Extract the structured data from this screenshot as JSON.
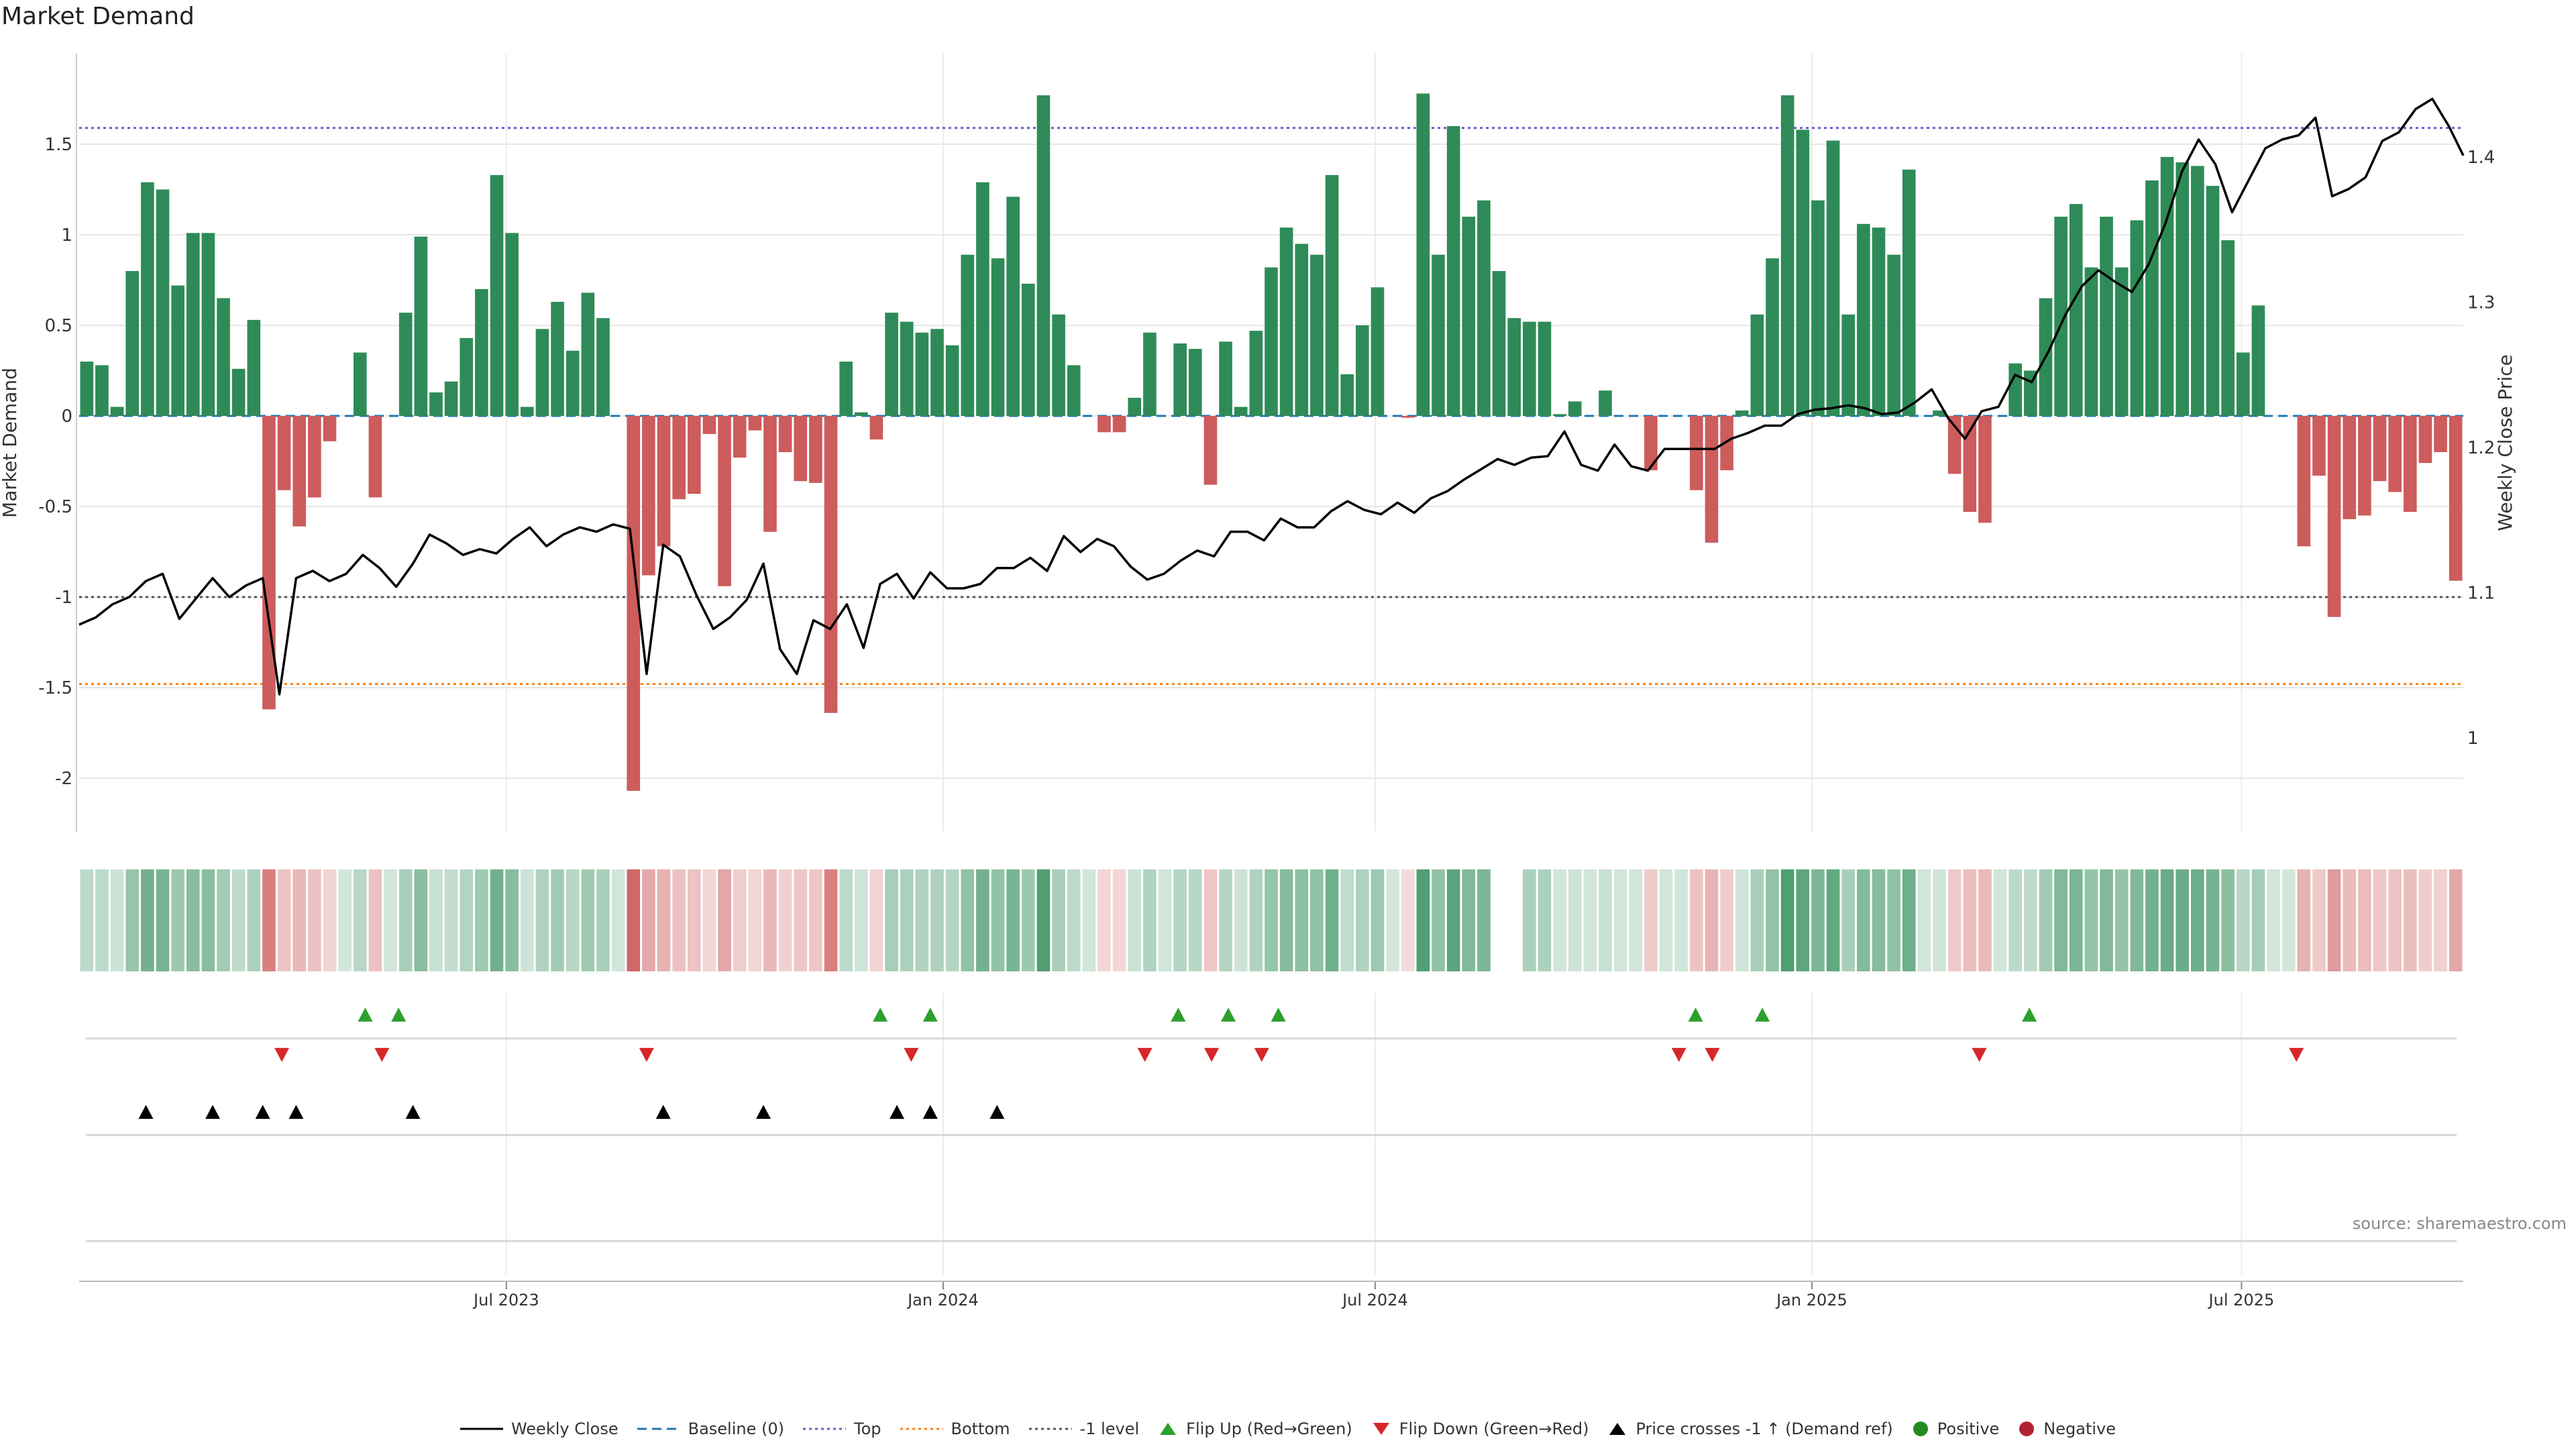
{
  "header": {
    "title": "Market Demand"
  },
  "source": "source: sharemaestro.com",
  "colors": {
    "positive": "#2e8b57",
    "negative": "#cd5c5c",
    "price": "#000000",
    "baseline": "#1f77b4",
    "top": "#6a5acd",
    "bottom": "#ff7f0e",
    "minus1": "#555555",
    "flip_up": "#2ca02c",
    "flip_down": "#d62728",
    "cross": "#000000"
  },
  "legend": {
    "items": [
      {
        "key": "weekly_close",
        "label": "Weekly Close"
      },
      {
        "key": "baseline",
        "label": "Baseline (0)"
      },
      {
        "key": "top",
        "label": "Top"
      },
      {
        "key": "bottom",
        "label": "Bottom"
      },
      {
        "key": "minus1",
        "label": "-1 level"
      },
      {
        "key": "flip_up",
        "label": "Flip Up (Red→Green)"
      },
      {
        "key": "flip_down",
        "label": "Flip Down (Green→Red)"
      },
      {
        "key": "cross",
        "label": "Price crosses -1 ↑ (Demand ref)"
      },
      {
        "key": "positive",
        "label": "Positive"
      },
      {
        "key": "negative",
        "label": "Negative"
      }
    ]
  },
  "chart_data": {
    "type": "bar",
    "title": "Market Demand",
    "ylabel": "Market Demand",
    "y2label": "Weekly Close Price",
    "ylim": [
      -2.3,
      2.0
    ],
    "y2lim": [
      0.95,
      1.485
    ],
    "yticks": [
      -2,
      -1.5,
      -1,
      -0.5,
      0,
      0.5,
      1,
      1.5
    ],
    "yticklabels": [
      "-2",
      "-1.5",
      "-1",
      "-0.5",
      "0",
      "0.5",
      "1",
      "1.5"
    ],
    "y2ticks": [
      1.0,
      1.1,
      1.2,
      1.3,
      1.4
    ],
    "y2ticklabels": [
      "1",
      "1.1",
      "1.2",
      "1.3",
      "1.4"
    ],
    "start_date": "2023-01-02",
    "xticks": [
      {
        "date": "2023-07-01",
        "label": "Jul 2023"
      },
      {
        "date": "2024-01-01",
        "label": "Jan 2024"
      },
      {
        "date": "2024-07-01",
        "label": "Jul 2024"
      },
      {
        "date": "2025-01-01",
        "label": "Jan 2025"
      },
      {
        "date": "2025-07-01",
        "label": "Jul 2025"
      }
    ],
    "reference_lines": {
      "baseline": 0,
      "top": 1.59,
      "bottom": -1.48,
      "minus1": -1.0
    },
    "demand": [
      0.3,
      0.28,
      0.05,
      0.8,
      1.29,
      1.25,
      0.72,
      1.01,
      1.01,
      0.65,
      0.26,
      0.53,
      -1.62,
      -0.41,
      -0.61,
      -0.45,
      -0.14,
      0.0,
      0.35,
      -0.45,
      0.0,
      0.57,
      0.99,
      0.13,
      0.19,
      0.43,
      0.7,
      1.33,
      1.01,
      0.05,
      0.48,
      0.63,
      0.36,
      0.68,
      0.54,
      0.0,
      -2.07,
      -0.88,
      -0.72,
      -0.46,
      -0.43,
      -0.1,
      -0.94,
      -0.23,
      -0.08,
      -0.64,
      -0.2,
      -0.36,
      -0.37,
      -1.64,
      0.3,
      0.02,
      -0.13,
      0.57,
      0.52,
      0.46,
      0.48,
      0.39,
      0.89,
      1.29,
      0.87,
      1.21,
      0.73,
      1.77,
      0.56,
      0.28,
      0.0,
      -0.09,
      -0.09,
      0.1,
      0.46,
      0.0,
      0.4,
      0.37,
      -0.38,
      0.41,
      0.05,
      0.47,
      0.82,
      1.04,
      0.95,
      0.89,
      1.33,
      0.23,
      0.5,
      0.71,
      0.0,
      -0.01,
      1.78,
      0.89,
      1.6,
      1.1,
      1.19,
      0.8,
      0.54,
      0.52,
      0.52,
      0.01,
      0.08,
      0.0,
      0.14,
      0.0,
      0.0,
      -0.3,
      0.0,
      0.0,
      -0.41,
      -0.7,
      -0.3,
      0.03,
      0.56,
      0.87,
      1.77,
      1.58,
      1.19,
      1.52,
      0.56,
      1.06,
      1.04,
      0.89,
      1.36,
      0.0,
      0.03,
      -0.32,
      -0.53,
      -0.59,
      0.0,
      0.29,
      0.25,
      0.65,
      1.1,
      1.17,
      0.82,
      1.1,
      0.82,
      1.08,
      1.3,
      1.43,
      1.4,
      1.38,
      1.27,
      0.97,
      0.35,
      0.61,
      0.0,
      0.0,
      -0.72,
      -0.33,
      -1.11,
      -0.57,
      -0.55,
      -0.36,
      -0.42,
      -0.53,
      -0.26,
      -0.2,
      -0.91
    ],
    "demand_gaps": [
      [
        0.593,
        0.605
      ]
    ],
    "price": [
      [
        0.0,
        1.078
      ],
      [
        0.007,
        1.083
      ],
      [
        0.014,
        1.092
      ],
      [
        0.021,
        1.097
      ],
      [
        0.028,
        1.108
      ],
      [
        0.035,
        1.113
      ],
      [
        0.042,
        1.082
      ],
      [
        0.049,
        1.096
      ],
      [
        0.056,
        1.11
      ],
      [
        0.063,
        1.097
      ],
      [
        0.07,
        1.105
      ],
      [
        0.077,
        1.11
      ],
      [
        0.084,
        1.03
      ],
      [
        0.091,
        1.11
      ],
      [
        0.098,
        1.115
      ],
      [
        0.105,
        1.108
      ],
      [
        0.112,
        1.113
      ],
      [
        0.119,
        1.126
      ],
      [
        0.126,
        1.117
      ],
      [
        0.133,
        1.104
      ],
      [
        0.14,
        1.12
      ],
      [
        0.147,
        1.14
      ],
      [
        0.154,
        1.134
      ],
      [
        0.161,
        1.126
      ],
      [
        0.168,
        1.13
      ],
      [
        0.175,
        1.127
      ],
      [
        0.182,
        1.137
      ],
      [
        0.189,
        1.145
      ],
      [
        0.196,
        1.132
      ],
      [
        0.203,
        1.14
      ],
      [
        0.21,
        1.145
      ],
      [
        0.217,
        1.142
      ],
      [
        0.224,
        1.147
      ],
      [
        0.231,
        1.144
      ],
      [
        0.238,
        1.044
      ],
      [
        0.245,
        1.133
      ],
      [
        0.252,
        1.125
      ],
      [
        0.259,
        1.098
      ],
      [
        0.266,
        1.075
      ],
      [
        0.273,
        1.083
      ],
      [
        0.28,
        1.095
      ],
      [
        0.287,
        1.12
      ],
      [
        0.294,
        1.061
      ],
      [
        0.301,
        1.044
      ],
      [
        0.308,
        1.081
      ],
      [
        0.315,
        1.075
      ],
      [
        0.322,
        1.092
      ],
      [
        0.329,
        1.062
      ],
      [
        0.336,
        1.106
      ],
      [
        0.343,
        1.113
      ],
      [
        0.35,
        1.096
      ],
      [
        0.357,
        1.114
      ],
      [
        0.364,
        1.103
      ],
      [
        0.371,
        1.103
      ],
      [
        0.378,
        1.106
      ],
      [
        0.385,
        1.117
      ],
      [
        0.392,
        1.117
      ],
      [
        0.399,
        1.124
      ],
      [
        0.406,
        1.115
      ],
      [
        0.413,
        1.139
      ],
      [
        0.42,
        1.128
      ],
      [
        0.427,
        1.137
      ],
      [
        0.434,
        1.132
      ],
      [
        0.441,
        1.118
      ],
      [
        0.448,
        1.109
      ],
      [
        0.455,
        1.113
      ],
      [
        0.462,
        1.122
      ],
      [
        0.469,
        1.129
      ],
      [
        0.476,
        1.125
      ],
      [
        0.483,
        1.142
      ],
      [
        0.49,
        1.142
      ],
      [
        0.497,
        1.136
      ],
      [
        0.504,
        1.151
      ],
      [
        0.511,
        1.145
      ],
      [
        0.518,
        1.145
      ],
      [
        0.525,
        1.156
      ],
      [
        0.532,
        1.163
      ],
      [
        0.539,
        1.157
      ],
      [
        0.546,
        1.154
      ],
      [
        0.553,
        1.162
      ],
      [
        0.56,
        1.155
      ],
      [
        0.567,
        1.165
      ],
      [
        0.574,
        1.17
      ],
      [
        0.581,
        1.178
      ],
      [
        0.588,
        1.185
      ],
      [
        0.595,
        1.192
      ],
      [
        0.602,
        1.188
      ],
      [
        0.609,
        1.193
      ],
      [
        0.616,
        1.194
      ],
      [
        0.623,
        1.211
      ],
      [
        0.63,
        1.188
      ],
      [
        0.637,
        1.184
      ],
      [
        0.644,
        1.202
      ],
      [
        0.651,
        1.187
      ],
      [
        0.658,
        1.184
      ],
      [
        0.665,
        1.199
      ],
      [
        0.672,
        1.199
      ],
      [
        0.679,
        1.199
      ],
      [
        0.686,
        1.199
      ],
      [
        0.693,
        1.206
      ],
      [
        0.7,
        1.21
      ],
      [
        0.707,
        1.215
      ],
      [
        0.714,
        1.215
      ],
      [
        0.721,
        1.223
      ],
      [
        0.728,
        1.226
      ],
      [
        0.735,
        1.227
      ],
      [
        0.742,
        1.229
      ],
      [
        0.749,
        1.227
      ],
      [
        0.756,
        1.223
      ],
      [
        0.763,
        1.224
      ],
      [
        0.77,
        1.231
      ],
      [
        0.777,
        1.24
      ],
      [
        0.784,
        1.22
      ],
      [
        0.791,
        1.206
      ],
      [
        0.798,
        1.225
      ],
      [
        0.805,
        1.228
      ],
      [
        0.812,
        1.25
      ],
      [
        0.819,
        1.245
      ],
      [
        0.826,
        1.266
      ],
      [
        0.833,
        1.291
      ],
      [
        0.84,
        1.311
      ],
      [
        0.847,
        1.322
      ],
      [
        0.854,
        1.314
      ],
      [
        0.861,
        1.307
      ],
      [
        0.868,
        1.326
      ],
      [
        0.875,
        1.354
      ],
      [
        0.882,
        1.39
      ],
      [
        0.889,
        1.412
      ],
      [
        0.896,
        1.395
      ],
      [
        0.903,
        1.362
      ],
      [
        0.91,
        1.384
      ],
      [
        0.917,
        1.406
      ],
      [
        0.924,
        1.412
      ],
      [
        0.931,
        1.415
      ],
      [
        0.938,
        1.427
      ],
      [
        0.945,
        1.373
      ],
      [
        0.952,
        1.378
      ],
      [
        0.959,
        1.386
      ],
      [
        0.966,
        1.411
      ],
      [
        0.973,
        1.417
      ],
      [
        0.98,
        1.433
      ],
      [
        0.987,
        1.44
      ],
      [
        0.994,
        1.421
      ],
      [
        1.0,
        1.401
      ]
    ],
    "flip_up": [
      0.12,
      0.134,
      0.336,
      0.357,
      0.461,
      0.482,
      0.503,
      0.678,
      0.706,
      0.818
    ],
    "flip_down": [
      0.085,
      0.127,
      0.238,
      0.349,
      0.447,
      0.475,
      0.496,
      0.671,
      0.685,
      0.797,
      0.93
    ],
    "price_cross": [
      0.028,
      0.056,
      0.077,
      0.091,
      0.14,
      0.245,
      0.287,
      0.343,
      0.357,
      0.385
    ]
  }
}
